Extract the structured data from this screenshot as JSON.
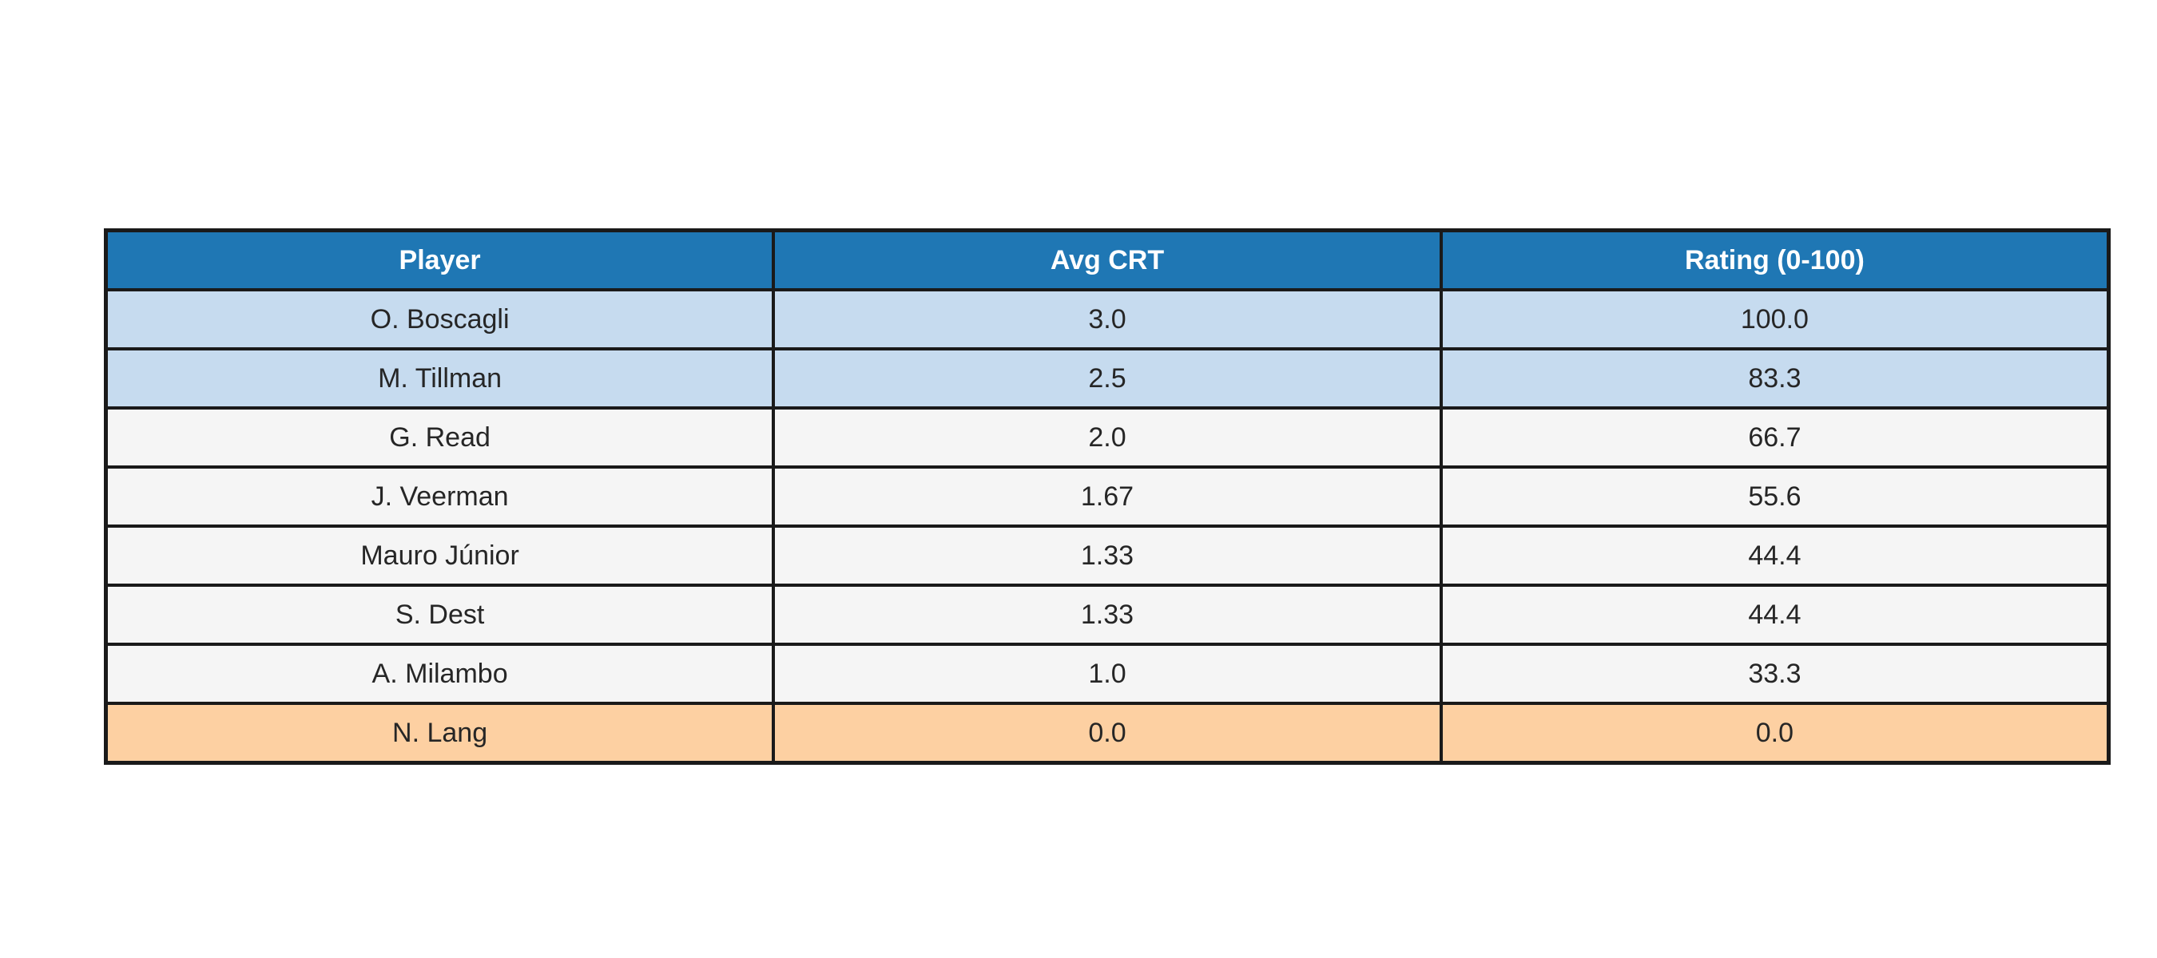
{
  "colors": {
    "page_bg": "#ffffff",
    "header_bg": "#1f77b4",
    "header_text": "#ffffff",
    "row_blue": "#c6dbef",
    "row_gray": "#f5f5f5",
    "row_orange": "#fdd0a2",
    "border": "#1a1a1a",
    "cell_text": "#262626"
  },
  "table": {
    "columns": [
      "Player",
      "Avg CRT",
      "Rating (0-100)"
    ],
    "rows": [
      {
        "player": "O. Boscagli",
        "avg_crt": "3.0",
        "rating": "100.0",
        "highlight": "blue"
      },
      {
        "player": "M. Tillman",
        "avg_crt": "2.5",
        "rating": "83.3",
        "highlight": "blue"
      },
      {
        "player": "G. Read",
        "avg_crt": "2.0",
        "rating": "66.7",
        "highlight": "gray"
      },
      {
        "player": "J. Veerman",
        "avg_crt": "1.67",
        "rating": "55.6",
        "highlight": "gray"
      },
      {
        "player": "Mauro Júnior",
        "avg_crt": "1.33",
        "rating": "44.4",
        "highlight": "gray"
      },
      {
        "player": "S. Dest",
        "avg_crt": "1.33",
        "rating": "44.4",
        "highlight": "gray"
      },
      {
        "player": "A. Milambo",
        "avg_crt": "1.0",
        "rating": "33.3",
        "highlight": "gray"
      },
      {
        "player": "N. Lang",
        "avg_crt": "0.0",
        "rating": "0.0",
        "highlight": "orange"
      }
    ]
  },
  "chart_data": {
    "type": "table",
    "columns": [
      "Player",
      "Avg CRT",
      "Rating (0-100)"
    ],
    "rows": [
      [
        "O. Boscagli",
        3.0,
        100.0
      ],
      [
        "M. Tillman",
        2.5,
        83.3
      ],
      [
        "G. Read",
        2.0,
        66.7
      ],
      [
        "J. Veerman",
        1.67,
        55.6
      ],
      [
        "Mauro Júnior",
        1.33,
        44.4
      ],
      [
        "S. Dest",
        1.33,
        44.4
      ],
      [
        "A. Milambo",
        1.0,
        33.3
      ],
      [
        "N. Lang",
        0.0,
        0.0
      ]
    ]
  }
}
